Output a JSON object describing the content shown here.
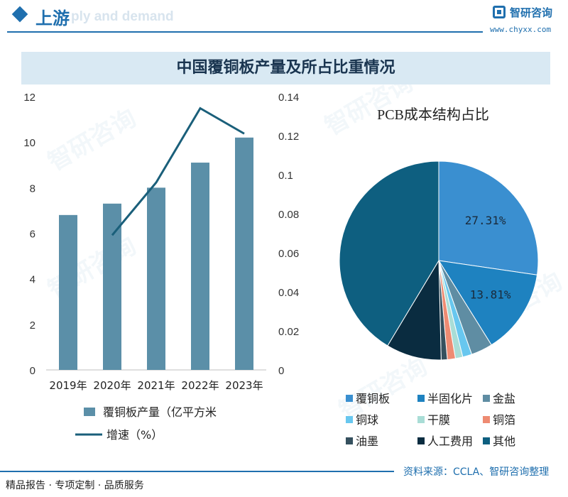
{
  "header": {
    "section_title": "上游",
    "section_subtitle": "ply and demand",
    "brand_name": "智研咨询",
    "brand_url": "www.chyxx.com"
  },
  "watermark": "智研咨询",
  "chart_data": [
    {
      "type": "bar",
      "title": "中国覆铜板产量及所占比重情况",
      "categories": [
        "2019年",
        "2020年",
        "2021年",
        "2022年",
        "2023年"
      ],
      "series": [
        {
          "name": "覆铜板产量（亿平方米",
          "type": "bar",
          "axis": "left",
          "color": "#5b8fa8",
          "values": [
            6.8,
            7.3,
            8.0,
            9.1,
            10.2
          ]
        },
        {
          "name": "增速（%）",
          "type": "line",
          "axis": "right",
          "color": "#1a5f7a",
          "values": [
            null,
            0.069,
            0.096,
            0.134,
            0.121
          ]
        }
      ],
      "y_left": {
        "ylim": [
          0,
          12
        ],
        "ticks": [
          "0",
          "2",
          "4",
          "6",
          "8",
          "10",
          "12"
        ]
      },
      "y_right": {
        "ylim": [
          0,
          0.14
        ],
        "ticks": [
          "0",
          "0.02",
          "0.04",
          "0.06",
          "0.08",
          "0.1",
          "0.12",
          "0.14"
        ]
      },
      "grid": false,
      "legend": "bottom"
    },
    {
      "type": "pie",
      "title": "PCB成本结构占比",
      "categories": [
        "覆铜板",
        "半固化片",
        "金盐",
        "铜球",
        "干膜",
        "铜箔",
        "油墨",
        "人工费用",
        "其他"
      ],
      "values": [
        27.31,
        13.81,
        3.5,
        1.5,
        1.2,
        1.3,
        1.0,
        9.0,
        41.38
      ],
      "labels": [
        "27.31%",
        "13.81%",
        "",
        "",
        "",
        "",
        "",
        "",
        ""
      ],
      "colors": [
        "#3a8fd0",
        "#1e82c0",
        "#5f8da3",
        "#68c7ef",
        "#a9ddd6",
        "#ee8b72",
        "#35505e",
        "#0a2c40",
        "#0e5f80"
      ],
      "legend": "bottom"
    }
  ],
  "footer": {
    "left": "精品报告 · 专项定制 · 品质服务",
    "source": "资料来源：CCLA、智研咨询整理"
  }
}
